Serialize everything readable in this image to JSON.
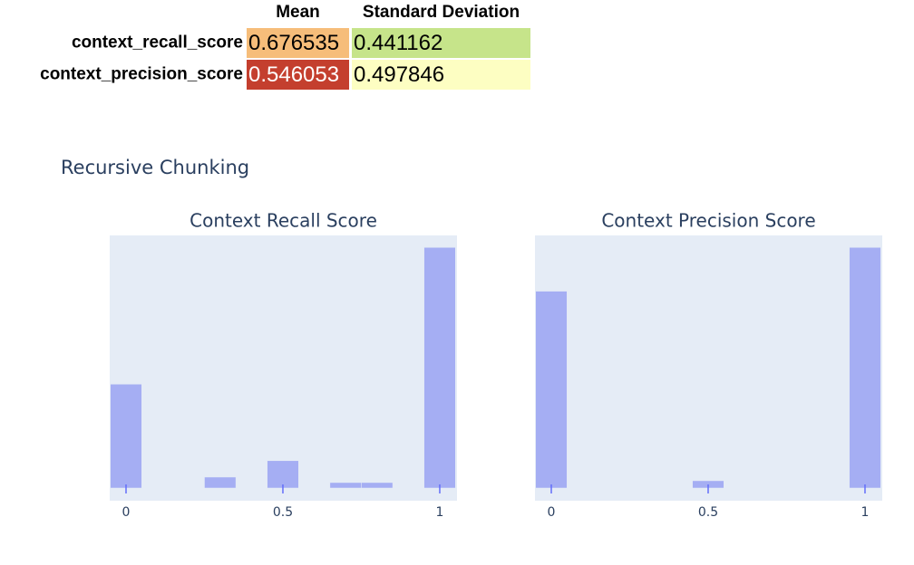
{
  "table": {
    "columns": [
      "Mean",
      "Standard Deviation"
    ],
    "rows": [
      {
        "label": "context_recall_score",
        "cells": [
          0.676535,
          0.441162
        ],
        "colors": [
          "#f6bd7a",
          "#c6e48a"
        ]
      },
      {
        "label": "context_precision_score",
        "cells": [
          0.546053,
          0.497846
        ],
        "colors": [
          "#c43f2e",
          "#fdfec2"
        ]
      }
    ]
  },
  "figure_title": "Recursive Chunking",
  "chart_data": [
    {
      "type": "histogram",
      "title": "Context Recall Score",
      "bins": [
        -0.05,
        0.05,
        0.15,
        0.25,
        0.35,
        0.45,
        0.55,
        0.65,
        0.75,
        0.85,
        0.95,
        1.05
      ],
      "counts": [
        19,
        0,
        0,
        2,
        0,
        5,
        0,
        1,
        1,
        0,
        44
      ],
      "xlim": [
        -0.052,
        1.055
      ],
      "xticks": [
        0,
        0.5,
        1
      ],
      "ylim": [
        0,
        46.2
      ],
      "color": "#a5aef3"
    },
    {
      "type": "histogram",
      "title": "Context Precision Score",
      "bins": [
        -0.05,
        0.05,
        0.15,
        0.25,
        0.35,
        0.45,
        0.55,
        0.65,
        0.75,
        0.85,
        0.95,
        1.05
      ],
      "counts": [
        27,
        0,
        0,
        0,
        0,
        1,
        0,
        0,
        0,
        0,
        33
      ],
      "xlim": [
        -0.052,
        1.055
      ],
      "xticks": [
        0,
        0.5,
        1
      ],
      "ylim": [
        0,
        34.65
      ],
      "color": "#a5aef3"
    }
  ]
}
